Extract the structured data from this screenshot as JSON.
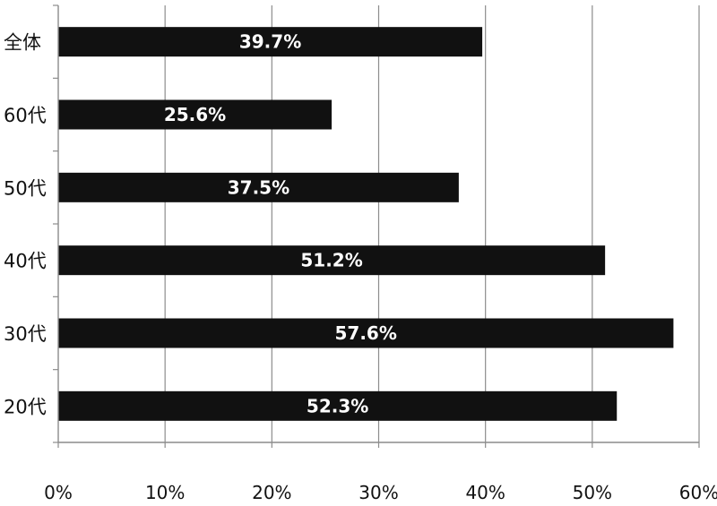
{
  "chart_data": {
    "type": "bar",
    "orientation": "horizontal",
    "categories": [
      "全体",
      "60代",
      "50代",
      "40代",
      "30代",
      "20代"
    ],
    "values": [
      39.7,
      25.6,
      37.5,
      51.2,
      57.6,
      52.3
    ],
    "data_labels": [
      "39.7%",
      "25.6%",
      "37.5%",
      "51.2%",
      "57.6%",
      "52.3%"
    ],
    "x_ticks": [
      0,
      10,
      20,
      30,
      40,
      50,
      60
    ],
    "x_tick_labels": [
      "0%",
      "10%",
      "20%",
      "30%",
      "40%",
      "50%",
      "60%"
    ],
    "xlim": [
      0,
      60
    ],
    "title": "",
    "xlabel": "",
    "ylabel": "",
    "grid": "vertical",
    "legend": "none",
    "bar_color": "#111111",
    "label_color": "#ffffff"
  }
}
